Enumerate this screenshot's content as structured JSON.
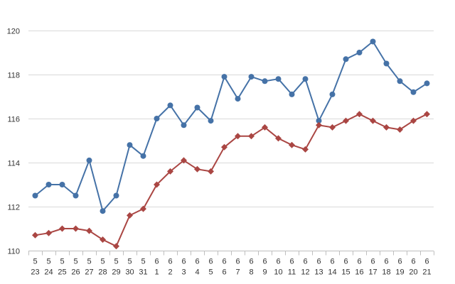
{
  "chart_data": {
    "type": "line",
    "title": "",
    "xlabel": "",
    "ylabel": "",
    "ylim": [
      110,
      120
    ],
    "yticks": [
      "110",
      "112",
      "114",
      "116",
      "118",
      "120"
    ],
    "grid": true,
    "legend": "none",
    "categories": [
      [
        "5",
        "23"
      ],
      [
        "5",
        "24"
      ],
      [
        "5",
        "25"
      ],
      [
        "5",
        "26"
      ],
      [
        "5",
        "27"
      ],
      [
        "5",
        "28"
      ],
      [
        "5",
        "29"
      ],
      [
        "5",
        "30"
      ],
      [
        "5",
        "31"
      ],
      [
        "6",
        "1"
      ],
      [
        "6",
        "2"
      ],
      [
        "6",
        "3"
      ],
      [
        "6",
        "4"
      ],
      [
        "6",
        "5"
      ],
      [
        "6",
        "6"
      ],
      [
        "6",
        "7"
      ],
      [
        "6",
        "8"
      ],
      [
        "6",
        "9"
      ],
      [
        "6",
        "10"
      ],
      [
        "6",
        "11"
      ],
      [
        "6",
        "12"
      ],
      [
        "6",
        "13"
      ],
      [
        "6",
        "14"
      ],
      [
        "6",
        "15"
      ],
      [
        "6",
        "16"
      ],
      [
        "6",
        "17"
      ],
      [
        "6",
        "18"
      ],
      [
        "6",
        "19"
      ],
      [
        "6",
        "20"
      ],
      [
        "6",
        "21"
      ]
    ],
    "series": [
      {
        "color": "#4572A7",
        "marker": "circle",
        "values": [
          112.5,
          113.0,
          113.0,
          112.5,
          114.1,
          111.8,
          112.5,
          114.8,
          114.3,
          116.0,
          116.6,
          115.7,
          116.5,
          115.9,
          117.9,
          116.9,
          117.9,
          117.7,
          117.8,
          117.1,
          117.8,
          115.9,
          117.1,
          118.7,
          119.0,
          119.5,
          118.5,
          117.7,
          117.2,
          117.6
        ]
      },
      {
        "color": "#AA4643",
        "marker": "diamond",
        "values": [
          110.7,
          110.8,
          111.0,
          111.0,
          110.9,
          110.5,
          110.2,
          111.6,
          111.9,
          113.0,
          113.6,
          114.1,
          113.7,
          113.6,
          114.7,
          115.2,
          115.2,
          115.6,
          115.1,
          114.8,
          114.6,
          115.7,
          115.6,
          115.9,
          116.2,
          115.9,
          115.6,
          115.5,
          115.9,
          116.2
        ]
      }
    ]
  }
}
